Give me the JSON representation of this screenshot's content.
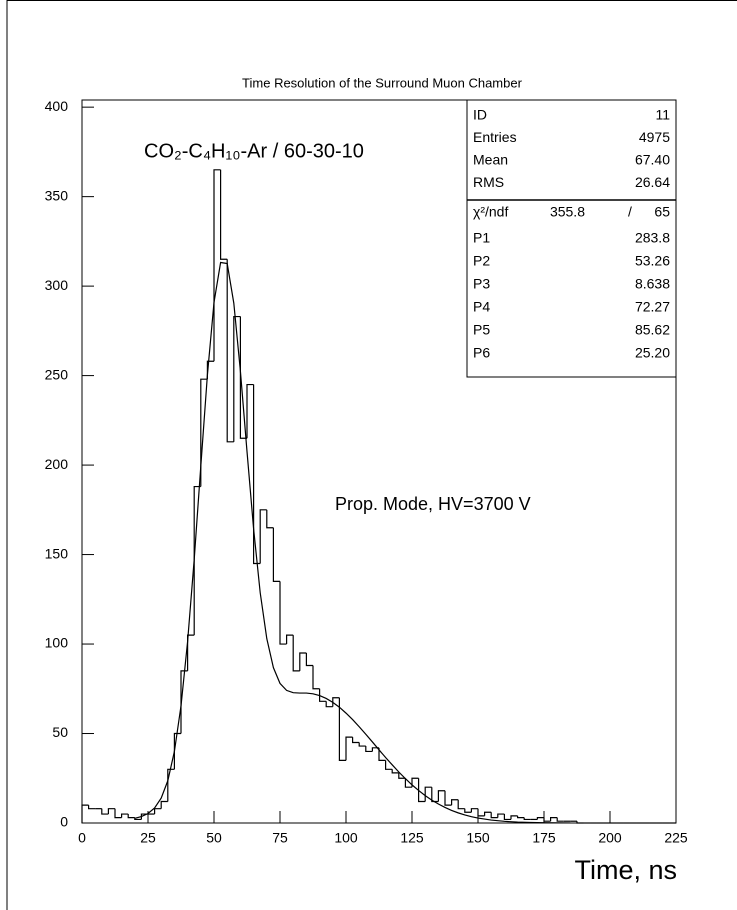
{
  "chart_data": {
    "type": "histogram",
    "title": "Time Resolution of the  Surround Muon Chamber",
    "x_label": "Time, ns",
    "annotations": [
      "CO₂-C₄H₁₀-Ar / 60-30-10",
      "Prop. Mode,  HV=3700 V"
    ],
    "color": "#000000",
    "xlim": [
      0,
      225
    ],
    "ylim": [
      0,
      404
    ],
    "xticks": [
      0,
      25,
      50,
      75,
      100,
      125,
      150,
      175,
      200,
      225
    ],
    "yticks": [
      0,
      50,
      100,
      150,
      200,
      250,
      300,
      350,
      400
    ],
    "bins": [
      0,
      2.5,
      5,
      7.5,
      10,
      12.5,
      15,
      17.5,
      20,
      22.5,
      25,
      27.5,
      30,
      32.5,
      35,
      37.5,
      40,
      42.5,
      45,
      47.5,
      50,
      52.5,
      55,
      57.5,
      60,
      62.5,
      65,
      67.5,
      70,
      72.5,
      75,
      77.5,
      80,
      82.5,
      85,
      87.5,
      90,
      92.5,
      95,
      97.5,
      100,
      102.5,
      105,
      107.5,
      110,
      112.5,
      115,
      117.5,
      120,
      122.5,
      125,
      127.5,
      130,
      132.5,
      135,
      137.5,
      140,
      142.5,
      145,
      147.5,
      150,
      152.5,
      155,
      157.5,
      160,
      162.5,
      165,
      167.5,
      170,
      172.5,
      175,
      177.5,
      180,
      182.5,
      185,
      187.5,
      190,
      192.5,
      195,
      197.5,
      200,
      202.5,
      205,
      207.5,
      210,
      212.5,
      215,
      217.5,
      220,
      222.5,
      225
    ],
    "values": [
      10,
      8,
      8,
      5,
      8,
      3,
      5,
      3,
      2,
      5,
      5,
      8,
      12,
      30,
      50,
      85,
      105,
      188,
      248,
      258,
      365,
      315,
      213,
      283,
      215,
      245,
      145,
      175,
      165,
      135,
      100,
      105,
      85,
      95,
      88,
      75,
      68,
      65,
      70,
      35,
      48,
      45,
      43,
      40,
      42,
      35,
      30,
      28,
      25,
      20,
      25,
      12,
      20,
      12,
      18,
      10,
      13,
      8,
      6,
      8,
      4,
      6,
      3,
      5,
      2,
      4,
      3,
      2,
      2,
      3,
      1,
      3,
      1,
      1,
      1,
      0,
      0,
      0,
      0,
      0,
      0,
      0,
      0,
      0,
      0,
      0,
      0,
      0,
      0,
      0
    ],
    "fit": {
      "x": [
        20,
        22.5,
        25,
        27.5,
        30,
        32.5,
        35,
        37.5,
        40,
        42.5,
        45,
        47.5,
        50,
        52.5,
        55,
        57.5,
        60,
        62.5,
        65,
        67.5,
        70,
        72.5,
        75,
        77.5,
        80,
        82.5,
        85,
        87.5,
        90,
        92.5,
        95,
        97.5,
        100,
        102.5,
        105,
        107.5,
        110,
        112.5,
        115,
        117.5,
        120,
        122.5,
        125,
        127.5,
        130,
        132.5,
        135,
        137.5,
        140,
        142.5,
        145,
        147.5,
        150,
        155,
        160,
        165,
        170,
        175,
        180,
        185
      ],
      "values": [
        2.6,
        3.6,
        5.3,
        8.4,
        13.9,
        23.6,
        40.0,
        65.4,
        101.4,
        147.3,
        199.4,
        250.3,
        290.9,
        313.2,
        312.6,
        290.5,
        252.5,
        207.6,
        164.4,
        128.7,
        103.0,
        86.8,
        78.0,
        74.1,
        72.8,
        72.6,
        72.6,
        72.2,
        71.2,
        69.6,
        67.4,
        64.7,
        61.4,
        57.8,
        53.8,
        49.6,
        45.3,
        40.9,
        36.6,
        32.5,
        28.5,
        24.8,
        21.3,
        18.2,
        15.3,
        12.8,
        10.6,
        8.7,
        7.05,
        5.66,
        4.5,
        3.54,
        2.76,
        1.63,
        0.93,
        0.51,
        0.27,
        0.13,
        0.06,
        0.03
      ]
    },
    "stats": [
      {
        "label": "ID",
        "value": "11"
      },
      {
        "label": "Entries",
        "value": "4975"
      },
      {
        "label": "Mean",
        "value": "67.40"
      },
      {
        "label": "RMS",
        "value": "26.64"
      }
    ],
    "chi2": {
      "label": "χ²/ndf",
      "value": "355.8",
      "sep": "/",
      "ndf": "65"
    },
    "params": [
      {
        "label": "P1",
        "value": "283.8"
      },
      {
        "label": "P2",
        "value": "53.26"
      },
      {
        "label": "P3",
        "value": "8.638"
      },
      {
        "label": "P4",
        "value": "72.27"
      },
      {
        "label": "P5",
        "value": "85.62"
      },
      {
        "label": "P6",
        "value": "25.20"
      }
    ]
  }
}
